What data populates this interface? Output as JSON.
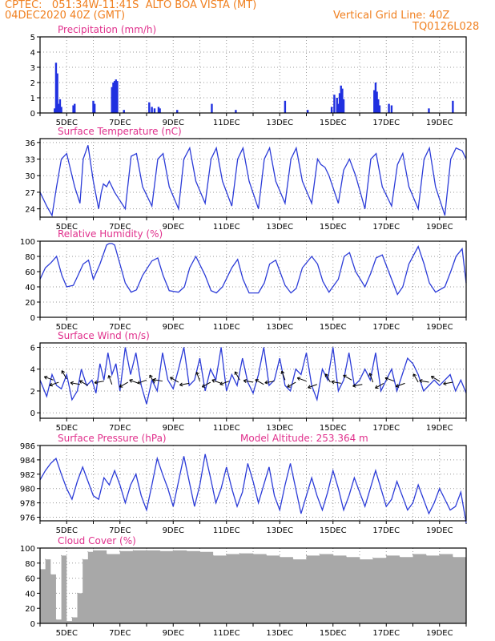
{
  "header": {
    "line1": "CPTEC:   051:34W-11:41S  ALTO BOA VISTA (MT)",
    "line2_left": "04DEC2020 40Z (GMT)",
    "line2_right": "Vertical Grid Line: 40Z",
    "line3_right": "TQ0126L028"
  },
  "colors": {
    "header": "#f08020",
    "title": "#e0308c",
    "line": "#2c3cd8",
    "bars": "#2030e0",
    "cloud": "#a8a8a8"
  },
  "chart_data": [
    {
      "type": "bar",
      "title": "Precipitation (mm/h)",
      "xlabel": "",
      "ylabel": "",
      "x_ticks": [
        "5DEC",
        "7DEC",
        "9DEC",
        "11DEC",
        "13DEC",
        "15DEC",
        "17DEC",
        "19DEC"
      ],
      "y_ticks": [
        "0",
        "1",
        "2",
        "3",
        "4",
        "5"
      ],
      "ylim": [
        0,
        5
      ],
      "grid": true,
      "x_unit": "days since 4DEC 00Z",
      "points": [
        [
          0.55,
          0.3
        ],
        [
          0.6,
          3.3
        ],
        [
          0.65,
          2.6
        ],
        [
          0.7,
          0.6
        ],
        [
          0.75,
          0.9
        ],
        [
          0.8,
          0.4
        ],
        [
          1.25,
          0.5
        ],
        [
          1.3,
          0.6
        ],
        [
          2.0,
          0.8
        ],
        [
          2.05,
          0.6
        ],
        [
          2.7,
          1.7
        ],
        [
          2.75,
          2.0
        ],
        [
          2.8,
          2.1
        ],
        [
          2.85,
          2.2
        ],
        [
          2.9,
          2.1
        ],
        [
          3.15,
          0.2
        ],
        [
          4.1,
          0.7
        ],
        [
          4.2,
          0.4
        ],
        [
          4.3,
          0.3
        ],
        [
          4.45,
          0.4
        ],
        [
          4.5,
          0.3
        ],
        [
          5.15,
          0.2
        ],
        [
          6.45,
          0.6
        ],
        [
          7.35,
          0.2
        ],
        [
          9.2,
          0.8
        ],
        [
          10.05,
          0.2
        ],
        [
          10.95,
          0.4
        ],
        [
          11.05,
          1.2
        ],
        [
          11.15,
          1.0
        ],
        [
          11.2,
          0.6
        ],
        [
          11.25,
          1.3
        ],
        [
          11.3,
          1.8
        ],
        [
          11.35,
          1.6
        ],
        [
          11.4,
          0.9
        ],
        [
          12.55,
          1.5
        ],
        [
          12.6,
          2.0
        ],
        [
          12.65,
          1.4
        ],
        [
          12.7,
          0.9
        ],
        [
          12.75,
          0.5
        ],
        [
          13.1,
          0.6
        ],
        [
          13.2,
          0.5
        ],
        [
          14.6,
          0.3
        ],
        [
          15.5,
          0.8
        ]
      ]
    },
    {
      "type": "line",
      "title": "Surface Temperature (nC)",
      "x_ticks": [
        "5DEC",
        "7DEC",
        "9DEC",
        "11DEC",
        "13DEC",
        "15DEC",
        "17DEC",
        "19DEC"
      ],
      "y_ticks": [
        "24",
        "27",
        "30",
        "33",
        "36"
      ],
      "ylim": [
        22.5,
        36.7
      ],
      "grid": true,
      "x": [
        0,
        0.25,
        0.45,
        0.62,
        0.8,
        1.0,
        1.3,
        1.5,
        1.62,
        1.8,
        2.0,
        2.2,
        2.3,
        2.38,
        2.5,
        2.6,
        2.8,
        3.2,
        3.42,
        3.62,
        3.85,
        4.2,
        4.42,
        4.62,
        4.85,
        5.2,
        5.4,
        5.62,
        5.85,
        6.2,
        6.42,
        6.62,
        6.85,
        7.2,
        7.42,
        7.62,
        7.85,
        8.2,
        8.42,
        8.62,
        8.85,
        9.2,
        9.42,
        9.62,
        9.85,
        10.2,
        10.42,
        10.55,
        10.7,
        10.85,
        11.2,
        11.4,
        11.62,
        11.85,
        12.2,
        12.42,
        12.62,
        12.85,
        13.2,
        13.42,
        13.62,
        13.85,
        14.2,
        14.42,
        14.62,
        14.85,
        15.2,
        15.42,
        15.62,
        15.85,
        16.0
      ],
      "series": [
        {
          "values": [
            27,
            24.5,
            22.8,
            28,
            33,
            34,
            28,
            25,
            33,
            35.5,
            29,
            24,
            27,
            28.5,
            28,
            29,
            27,
            24,
            33.5,
            34,
            28,
            24.5,
            33,
            34,
            28,
            24,
            33,
            35,
            29,
            25,
            33,
            35,
            29,
            24.5,
            33,
            35,
            29,
            24,
            33,
            35,
            29,
            25,
            33,
            35,
            29,
            25,
            33,
            32,
            31.5,
            30,
            25,
            31,
            33,
            30,
            24,
            33,
            34,
            28,
            24.5,
            32,
            34,
            28,
            24,
            33,
            35,
            28,
            22.8,
            33,
            35,
            34.5,
            33
          ]
        }
      ]
    },
    {
      "type": "line",
      "title": "Relative Humidity (%)",
      "x_ticks": [
        "5DEC",
        "7DEC",
        "9DEC",
        "11DEC",
        "13DEC",
        "15DEC",
        "17DEC",
        "19DEC"
      ],
      "y_ticks": [
        "0",
        "20",
        "40",
        "60",
        "80",
        "100"
      ],
      "ylim": [
        0,
        100
      ],
      "grid": true,
      "x": [
        0,
        0.2,
        0.42,
        0.62,
        0.82,
        1.0,
        1.25,
        1.45,
        1.62,
        1.82,
        2.0,
        2.25,
        2.4,
        2.5,
        2.6,
        2.7,
        2.8,
        3.2,
        3.42,
        3.62,
        3.85,
        4.2,
        4.42,
        4.62,
        4.85,
        5.2,
        5.42,
        5.62,
        5.85,
        6.2,
        6.42,
        6.62,
        6.85,
        7.2,
        7.42,
        7.62,
        7.85,
        8.2,
        8.42,
        8.62,
        8.85,
        9.2,
        9.42,
        9.62,
        9.85,
        10.2,
        10.42,
        10.62,
        10.85,
        11.2,
        11.42,
        11.62,
        11.85,
        12.2,
        12.42,
        12.62,
        12.85,
        13.2,
        13.42,
        13.62,
        13.85,
        14.2,
        14.42,
        14.62,
        14.85,
        15.2,
        15.42,
        15.62,
        15.85,
        16.0
      ],
      "series": [
        {
          "values": [
            50,
            65,
            72,
            80,
            55,
            40,
            42,
            57,
            70,
            75,
            50,
            70,
            85,
            95,
            97,
            97,
            95,
            45,
            33,
            36,
            55,
            74,
            78,
            55,
            35,
            33,
            40,
            65,
            80,
            55,
            35,
            32,
            40,
            65,
            76,
            50,
            32,
            32,
            45,
            70,
            75,
            42,
            32,
            38,
            65,
            80,
            70,
            47,
            33,
            50,
            80,
            85,
            60,
            40,
            58,
            78,
            82,
            50,
            30,
            40,
            70,
            93,
            70,
            45,
            33,
            40,
            60,
            80,
            90,
            45
          ]
        }
      ]
    },
    {
      "type": "line",
      "title": "Surface Wind (m/s)",
      "x_ticks": [
        "5DEC",
        "7DEC",
        "9DEC",
        "11DEC",
        "13DEC",
        "15DEC",
        "17DEC",
        "19DEC"
      ],
      "y_ticks": [
        "0",
        "2",
        "4",
        "6"
      ],
      "ylim": [
        -0.5,
        6.4
      ],
      "grid": true,
      "x": [
        0,
        0.25,
        0.45,
        0.62,
        0.8,
        1.0,
        1.2,
        1.4,
        1.55,
        1.75,
        1.95,
        2.1,
        2.25,
        2.4,
        2.55,
        2.7,
        2.85,
        3.0,
        3.2,
        3.4,
        3.6,
        3.8,
        4.0,
        4.2,
        4.4,
        4.6,
        4.8,
        5.0,
        5.2,
        5.4,
        5.6,
        5.8,
        6.0,
        6.2,
        6.4,
        6.6,
        6.8,
        7.0,
        7.2,
        7.4,
        7.6,
        7.8,
        8.0,
        8.2,
        8.4,
        8.6,
        8.8,
        9.0,
        9.2,
        9.4,
        9.6,
        9.8,
        10.0,
        10.2,
        10.4,
        10.6,
        10.8,
        11.0,
        11.2,
        11.4,
        11.6,
        11.8,
        12.0,
        12.2,
        12.4,
        12.6,
        12.8,
        13.0,
        13.2,
        13.4,
        13.6,
        13.8,
        14.0,
        14.2,
        14.4,
        14.6,
        14.8,
        15.0,
        15.2,
        15.4,
        15.6,
        15.8,
        16.0
      ],
      "series": [
        {
          "values": [
            3,
            1.5,
            3.5,
            2.5,
            2.2,
            3.5,
            1.2,
            2.0,
            4.0,
            2.5,
            3.0,
            1.8,
            4.5,
            3.0,
            5.5,
            3.5,
            4.5,
            2.0,
            6.0,
            3.5,
            5.5,
            2.5,
            0.8,
            3.0,
            2.0,
            5.5,
            3.0,
            2.2,
            4.0,
            6.0,
            2.5,
            3.0,
            5.0,
            2.0,
            4.0,
            3.0,
            6.0,
            2.0,
            3.5,
            2.5,
            5.0,
            2.8,
            1.8,
            3.5,
            6.0,
            2.5,
            3.0,
            5.0,
            2.5,
            2.0,
            4.0,
            3.5,
            5.5,
            2.5,
            1.2,
            4.0,
            3.0,
            6.0,
            2.0,
            3.0,
            5.5,
            2.5,
            3.0,
            4.0,
            3.0,
            5.5,
            2.0,
            3.0,
            4.0,
            2.0,
            3.5,
            5.0,
            4.5,
            3.5,
            2.0,
            2.5,
            3.0,
            2.5,
            3.0,
            3.5,
            2.0,
            3.0,
            1.8
          ]
        }
      ],
      "arrows": [
        [
          0.5,
          3.0
        ],
        [
          0.7,
          2.8
        ],
        [
          1.0,
          3.1
        ],
        [
          1.5,
          2.6
        ],
        [
          1.8,
          2.5
        ],
        [
          2.4,
          2.9
        ],
        [
          2.7,
          2.6
        ],
        [
          3.3,
          2.8
        ],
        [
          3.7,
          2.7
        ],
        [
          4.0,
          3.0
        ],
        [
          4.3,
          2.7
        ],
        [
          4.6,
          2.9
        ],
        [
          5.2,
          2.8
        ],
        [
          5.6,
          2.7
        ],
        [
          6.0,
          2.9
        ],
        [
          6.4,
          2.8
        ],
        [
          6.8,
          2.7
        ],
        [
          7.1,
          2.9
        ],
        [
          7.5,
          3.0
        ],
        [
          8.0,
          2.8
        ],
        [
          8.4,
          2.6
        ],
        [
          8.8,
          2.9
        ],
        [
          9.2,
          3.0
        ],
        [
          9.6,
          2.8
        ],
        [
          10.0,
          2.9
        ],
        [
          10.4,
          2.6
        ],
        [
          10.9,
          2.8
        ],
        [
          11.3,
          2.7
        ],
        [
          11.7,
          3.0
        ],
        [
          12.1,
          2.6
        ],
        [
          12.5,
          2.8
        ],
        [
          12.9,
          2.7
        ],
        [
          13.3,
          2.9
        ],
        [
          13.7,
          2.7
        ],
        [
          14.2,
          2.8
        ],
        [
          14.6,
          2.8
        ],
        [
          15.0,
          2.9
        ],
        [
          15.5,
          2.8
        ]
      ]
    },
    {
      "type": "line",
      "title": "Surface Pressure (hPa)",
      "annotation": "Model Altitude: 253.364 m",
      "x_ticks": [
        "5DEC",
        "7DEC",
        "9DEC",
        "11DEC",
        "13DEC",
        "15DEC",
        "17DEC",
        "19DEC"
      ],
      "y_ticks": [
        "976",
        "978",
        "980",
        "982",
        "984",
        "986"
      ],
      "ylim": [
        975.5,
        986
      ],
      "grid": true,
      "x": [
        0,
        0.2,
        0.4,
        0.6,
        0.8,
        1.0,
        1.2,
        1.4,
        1.6,
        1.8,
        2.0,
        2.2,
        2.4,
        2.6,
        2.8,
        3.0,
        3.2,
        3.4,
        3.6,
        3.8,
        4.0,
        4.2,
        4.4,
        4.6,
        4.8,
        5.0,
        5.2,
        5.4,
        5.6,
        5.8,
        6.0,
        6.2,
        6.4,
        6.6,
        6.8,
        7.0,
        7.2,
        7.4,
        7.6,
        7.8,
        8.0,
        8.2,
        8.4,
        8.6,
        8.8,
        9.0,
        9.2,
        9.4,
        9.6,
        9.8,
        10.0,
        10.2,
        10.4,
        10.6,
        10.8,
        11.0,
        11.2,
        11.4,
        11.6,
        11.8,
        12.0,
        12.2,
        12.4,
        12.6,
        12.8,
        13.0,
        13.2,
        13.4,
        13.6,
        13.8,
        14.0,
        14.2,
        14.4,
        14.6,
        14.8,
        15.0,
        15.2,
        15.4,
        15.6,
        15.8,
        16.0
      ],
      "series": [
        {
          "values": [
            981.2,
            982.5,
            983.5,
            984.2,
            982,
            980,
            978.5,
            981,
            983,
            981,
            979,
            978.5,
            981.5,
            980.5,
            982.5,
            980.5,
            978,
            980.5,
            982,
            979,
            977,
            980.5,
            984.2,
            982,
            980,
            977.5,
            981,
            984.5,
            981,
            977.5,
            980.5,
            984.8,
            981.5,
            978,
            980,
            983,
            980,
            977.5,
            979.5,
            983.5,
            981,
            978,
            980.5,
            983,
            979,
            977,
            980.5,
            983.5,
            980,
            976.5,
            979,
            981.5,
            979,
            977,
            979.5,
            982.5,
            980,
            977,
            979,
            981.5,
            979.5,
            977.5,
            980,
            982.5,
            980,
            977.5,
            978.5,
            981,
            979,
            977,
            978,
            980.5,
            978.5,
            976.5,
            978,
            980,
            978.5,
            977,
            977.5,
            979.5,
            975.2
          ]
        }
      ]
    },
    {
      "type": "bar",
      "title": "Cloud Cover (%)",
      "x_ticks": [
        "5DEC",
        "7DEC",
        "9DEC",
        "11DEC",
        "13DEC",
        "15DEC",
        "17DEC",
        "19DEC"
      ],
      "y_ticks": [
        "0",
        "20",
        "40",
        "60",
        "80",
        "100"
      ],
      "ylim": [
        0,
        100
      ],
      "grid": true,
      "x": [
        0,
        0.2,
        0.4,
        0.6,
        0.8,
        1.0,
        1.2,
        1.4,
        1.6,
        1.8,
        2.0,
        2.5,
        3.0,
        3.5,
        4.0,
        4.5,
        5.0,
        5.5,
        6.0,
        6.5,
        7.0,
        7.5,
        8.0,
        8.5,
        9.0,
        9.5,
        10.0,
        10.5,
        11.0,
        11.5,
        12.0,
        12.5,
        13.0,
        13.5,
        14.0,
        14.5,
        15.0,
        15.5,
        16.0
      ],
      "values": [
        72,
        85,
        65,
        5,
        90,
        3,
        8,
        40,
        85,
        95,
        97,
        92,
        96,
        97,
        97,
        96,
        97,
        96,
        95,
        90,
        92,
        93,
        92,
        90,
        88,
        85,
        90,
        92,
        90,
        88,
        85,
        87,
        90,
        88,
        92,
        90,
        92,
        88,
        95
      ]
    }
  ]
}
